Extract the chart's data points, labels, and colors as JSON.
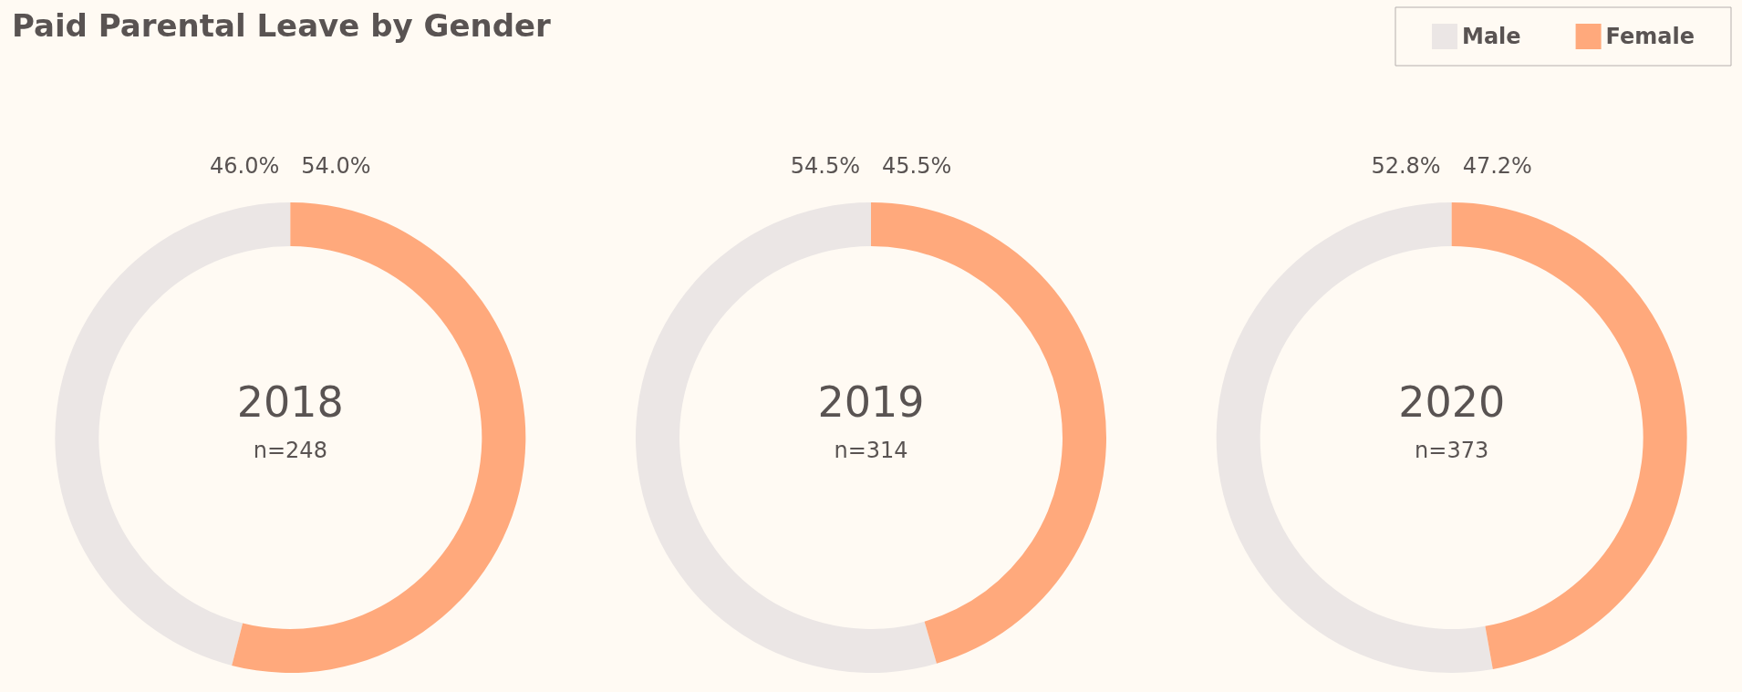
{
  "chart_data": {
    "type": "donut",
    "title": "Paid Parental Leave by Gender",
    "categories": [
      "Male",
      "Female"
    ],
    "colors": [
      "#ebe6e5",
      "#ffa97c"
    ],
    "legend": "top right",
    "series": [
      {
        "name": "2018",
        "values": [
          46.0,
          54.0
        ],
        "value_labels": [
          "46.0%",
          "54.0%"
        ]
      },
      {
        "name": "2019",
        "values": [
          54.5,
          45.5
        ],
        "value_labels": [
          "54.5%",
          "45.5%"
        ]
      },
      {
        "name": "2020",
        "values": [
          52.8,
          47.2
        ],
        "value_labels": [
          "52.8%",
          "47.2%"
        ]
      }
    ],
    "annotations": [
      "n=248",
      "n=314",
      "n=373"
    ]
  }
}
